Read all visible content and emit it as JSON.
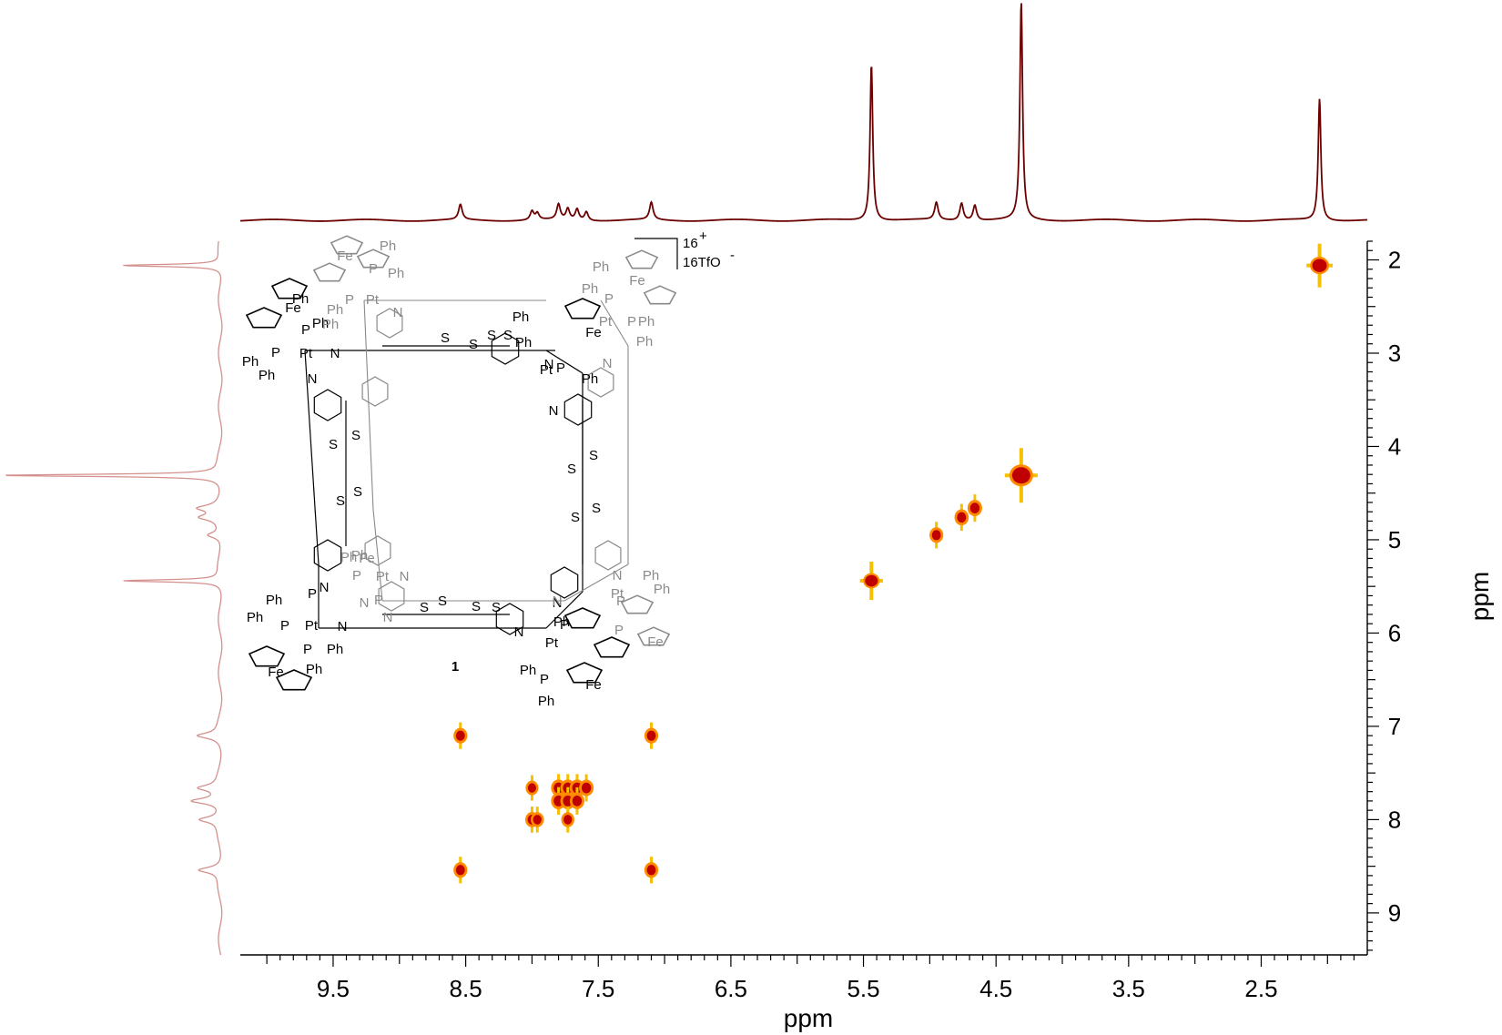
{
  "chart_data": {
    "type": "scatter",
    "subtype": "2D NMR (homonuclear 1H-1H correlation) contour plot with 1D projections",
    "xlabel": "ppm",
    "ylabel": "ppm",
    "x_reversed": true,
    "y_reversed": true,
    "xlim": [
      10.2,
      1.7
    ],
    "ylim": [
      1.8,
      9.45
    ],
    "x_ticks": [
      9.5,
      8.5,
      7.5,
      6.5,
      5.5,
      4.5,
      3.5,
      2.5
    ],
    "x_tick_labels": [
      "9.5",
      "8.5",
      "7.5",
      "6.5",
      "5.5",
      "4.5",
      "3.5",
      "2.5"
    ],
    "y_ticks": [
      2,
      3,
      4,
      5,
      6,
      7,
      8,
      9
    ],
    "y_tick_labels": [
      "2",
      "3",
      "4",
      "5",
      "6",
      "7",
      "8",
      "9"
    ],
    "grid": false,
    "colors": {
      "spectrum": "#6b0000",
      "projection": "#d4908c",
      "contour_core": "#c00000",
      "contour_edge": "#ff8a00",
      "contour_fringe": "#f5c000"
    },
    "top_projection_peaks": [
      {
        "ppm": 8.54,
        "height": 0.07
      },
      {
        "ppm": 8.0,
        "height": 0.04
      },
      {
        "ppm": 7.96,
        "height": 0.03
      },
      {
        "ppm": 7.8,
        "height": 0.07
      },
      {
        "ppm": 7.73,
        "height": 0.05
      },
      {
        "ppm": 7.66,
        "height": 0.05
      },
      {
        "ppm": 7.59,
        "height": 0.04
      },
      {
        "ppm": 7.1,
        "height": 0.08
      },
      {
        "ppm": 5.44,
        "height": 0.72
      },
      {
        "ppm": 4.95,
        "height": 0.08
      },
      {
        "ppm": 4.76,
        "height": 0.08
      },
      {
        "ppm": 4.66,
        "height": 0.07
      },
      {
        "ppm": 4.31,
        "height": 1.0
      },
      {
        "ppm": 2.06,
        "height": 0.56
      }
    ],
    "left_projection_peaks": [
      {
        "ppm": 2.06,
        "height": 0.45
      },
      {
        "ppm": 4.31,
        "height": 1.0
      },
      {
        "ppm": 4.66,
        "height": 0.09
      },
      {
        "ppm": 4.76,
        "height": 0.08
      },
      {
        "ppm": 4.95,
        "height": 0.06
      },
      {
        "ppm": 5.44,
        "height": 0.44
      },
      {
        "ppm": 7.1,
        "height": 0.1
      },
      {
        "ppm": 7.66,
        "height": 0.09
      },
      {
        "ppm": 7.8,
        "height": 0.13
      },
      {
        "ppm": 8.0,
        "height": 0.09
      },
      {
        "ppm": 8.54,
        "height": 0.1
      }
    ],
    "cross_peaks": [
      {
        "x": 2.06,
        "y": 2.06,
        "intensity": 0.8
      },
      {
        "x": 4.31,
        "y": 4.31,
        "intensity": 1.0
      },
      {
        "x": 4.66,
        "y": 4.66,
        "intensity": 0.5
      },
      {
        "x": 4.76,
        "y": 4.76,
        "intensity": 0.45
      },
      {
        "x": 4.95,
        "y": 4.95,
        "intensity": 0.4
      },
      {
        "x": 5.44,
        "y": 5.44,
        "intensity": 0.7
      },
      {
        "x": 8.54,
        "y": 7.1,
        "intensity": 0.4
      },
      {
        "x": 7.1,
        "y": 7.1,
        "intensity": 0.4
      },
      {
        "x": 8.0,
        "y": 7.66,
        "intensity": 0.25
      },
      {
        "x": 7.8,
        "y": 7.66,
        "intensity": 0.55
      },
      {
        "x": 7.73,
        "y": 7.66,
        "intensity": 0.55
      },
      {
        "x": 7.66,
        "y": 7.66,
        "intensity": 0.55
      },
      {
        "x": 7.59,
        "y": 7.66,
        "intensity": 0.5
      },
      {
        "x": 7.8,
        "y": 7.8,
        "intensity": 0.55
      },
      {
        "x": 7.73,
        "y": 7.8,
        "intensity": 0.55
      },
      {
        "x": 7.66,
        "y": 7.8,
        "intensity": 0.5
      },
      {
        "x": 8.0,
        "y": 8.0,
        "intensity": 0.35
      },
      {
        "x": 7.96,
        "y": 8.0,
        "intensity": 0.3
      },
      {
        "x": 7.73,
        "y": 8.0,
        "intensity": 0.3
      },
      {
        "x": 8.54,
        "y": 8.54,
        "intensity": 0.4
      },
      {
        "x": 7.1,
        "y": 8.54,
        "intensity": 0.4
      }
    ]
  },
  "structure": {
    "compound_number": "1",
    "charge": "16",
    "charge_sign": "+",
    "counterion": "16TfO",
    "counterion_sign": "-",
    "labels_black": [
      "Fe",
      "Fe",
      "Fe",
      "Fe",
      "Pt",
      "Pt",
      "Pt",
      "Pt",
      "P",
      "P",
      "P",
      "P",
      "P",
      "P",
      "P",
      "P",
      "Ph",
      "Ph",
      "Ph",
      "Ph",
      "Ph",
      "Ph",
      "Ph",
      "Ph",
      "Ph",
      "Ph",
      "Ph",
      "Ph",
      "Ph",
      "Ph",
      "N",
      "N",
      "N",
      "N",
      "N",
      "N",
      "N",
      "N",
      "S",
      "S",
      "S",
      "S",
      "S",
      "S",
      "S",
      "S",
      "S",
      "S",
      "S",
      "S",
      "S",
      "S",
      "S",
      "S"
    ],
    "labels_grey": [
      "Fe",
      "Fe",
      "Fe",
      "Fe",
      "Pt",
      "Pt",
      "Pt",
      "Pt",
      "P",
      "P",
      "P",
      "P",
      "P",
      "P",
      "P",
      "P",
      "Ph",
      "Ph",
      "Ph",
      "Ph",
      "Ph",
      "Ph",
      "Ph",
      "Ph",
      "Ph",
      "Ph",
      "Ph",
      "Ph",
      "N",
      "N",
      "N",
      "N",
      "N",
      "N",
      "N"
    ]
  }
}
